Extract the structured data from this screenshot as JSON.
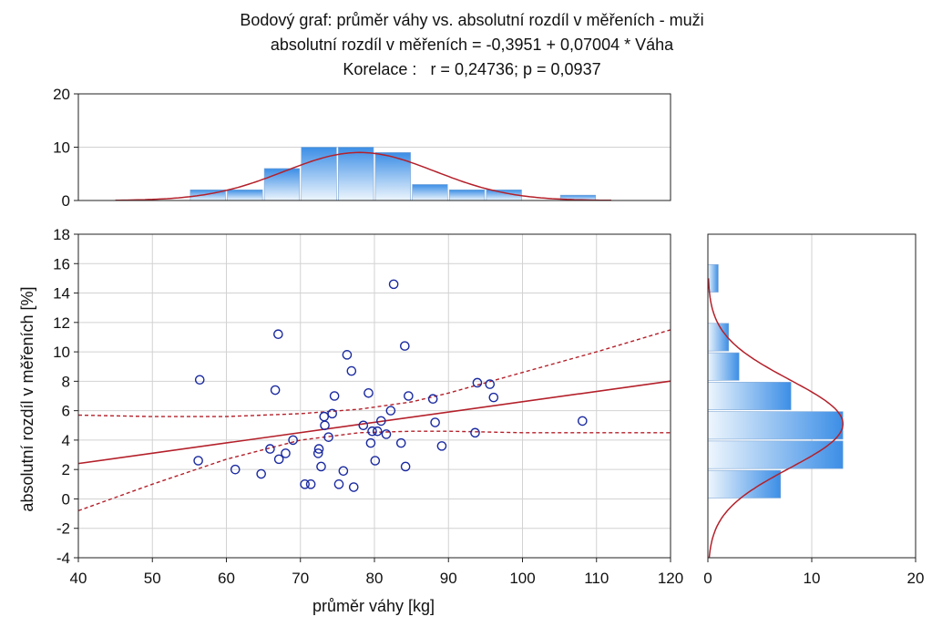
{
  "chart_data": {
    "type": "scatter",
    "title_lines": [
      "Bodový graf: průměr váhy vs. absolutní rozdíl v měřeních - muži",
      "absolutní rozdíl v měřeních = -0,3951 + 0,07004 * Váha",
      "Korelace :   r = 0,24736; p = 0,0937"
    ],
    "xlabel": "průměr váhy [kg]",
    "ylabel": "absolutní rozdíl v měřeních [%]",
    "xlim": [
      40,
      120
    ],
    "ylim": [
      -4,
      18
    ],
    "x_ticks": [
      "40",
      "50",
      "60",
      "70",
      "80",
      "90",
      "100",
      "110",
      "120"
    ],
    "y_ticks": [
      "-4",
      "-2",
      "0",
      "2",
      "4",
      "6",
      "8",
      "10",
      "12",
      "14",
      "16",
      "18"
    ],
    "grid": true,
    "regression": {
      "intercept": -0.3951,
      "slope": 0.07004
    },
    "confidence_band": {
      "x": [
        40,
        50,
        60,
        70,
        78,
        85,
        90,
        100,
        110,
        120
      ],
      "upper": [
        5.7,
        5.6,
        5.6,
        5.8,
        6.1,
        6.6,
        7.2,
        8.6,
        10.0,
        11.5
      ],
      "lower": [
        -0.8,
        1.0,
        2.7,
        4.0,
        4.5,
        4.6,
        4.6,
        4.5,
        4.5,
        4.5
      ]
    },
    "points": [
      {
        "x": 56.4,
        "y": 8.1
      },
      {
        "x": 56.2,
        "y": 2.6
      },
      {
        "x": 61.2,
        "y": 2.0
      },
      {
        "x": 64.7,
        "y": 1.7
      },
      {
        "x": 66.6,
        "y": 7.4
      },
      {
        "x": 67.0,
        "y": 11.2
      },
      {
        "x": 65.9,
        "y": 3.4
      },
      {
        "x": 67.1,
        "y": 2.7
      },
      {
        "x": 68.0,
        "y": 3.1
      },
      {
        "x": 69.0,
        "y": 4.0
      },
      {
        "x": 70.6,
        "y": 1.0
      },
      {
        "x": 71.4,
        "y": 1.0
      },
      {
        "x": 72.5,
        "y": 3.4
      },
      {
        "x": 72.4,
        "y": 3.1
      },
      {
        "x": 72.8,
        "y": 2.2
      },
      {
        "x": 73.3,
        "y": 5.0
      },
      {
        "x": 73.2,
        "y": 5.6
      },
      {
        "x": 74.3,
        "y": 5.8
      },
      {
        "x": 73.8,
        "y": 4.2
      },
      {
        "x": 74.6,
        "y": 7.0
      },
      {
        "x": 75.2,
        "y": 1.0
      },
      {
        "x": 75.8,
        "y": 1.9
      },
      {
        "x": 76.3,
        "y": 9.8
      },
      {
        "x": 76.9,
        "y": 8.7
      },
      {
        "x": 77.2,
        "y": 0.8
      },
      {
        "x": 78.5,
        "y": 5.0
      },
      {
        "x": 79.2,
        "y": 7.2
      },
      {
        "x": 79.5,
        "y": 3.8
      },
      {
        "x": 79.7,
        "y": 4.6
      },
      {
        "x": 80.1,
        "y": 2.6
      },
      {
        "x": 80.4,
        "y": 4.6
      },
      {
        "x": 80.9,
        "y": 5.3
      },
      {
        "x": 81.6,
        "y": 4.4
      },
      {
        "x": 82.2,
        "y": 6.0
      },
      {
        "x": 82.6,
        "y": 14.6
      },
      {
        "x": 83.6,
        "y": 3.8
      },
      {
        "x": 84.1,
        "y": 10.4
      },
      {
        "x": 84.2,
        "y": 2.2
      },
      {
        "x": 84.6,
        "y": 7.0
      },
      {
        "x": 87.9,
        "y": 6.8
      },
      {
        "x": 88.2,
        "y": 5.2
      },
      {
        "x": 89.1,
        "y": 3.6
      },
      {
        "x": 93.6,
        "y": 4.5
      },
      {
        "x": 93.9,
        "y": 7.9
      },
      {
        "x": 95.6,
        "y": 7.8
      },
      {
        "x": 96.1,
        "y": 6.9
      },
      {
        "x": 108.1,
        "y": 5.3
      }
    ],
    "top_histogram": {
      "ylim": [
        0,
        20
      ],
      "y_ticks": [
        "0",
        "10",
        "20"
      ],
      "bins": [
        {
          "from": 55,
          "to": 60,
          "count": 2
        },
        {
          "from": 60,
          "to": 65,
          "count": 2
        },
        {
          "from": 65,
          "to": 70,
          "count": 6
        },
        {
          "from": 70,
          "to": 75,
          "count": 10
        },
        {
          "from": 75,
          "to": 80,
          "count": 10
        },
        {
          "from": 80,
          "to": 85,
          "count": 9
        },
        {
          "from": 85,
          "to": 90,
          "count": 3
        },
        {
          "from": 90,
          "to": 95,
          "count": 2
        },
        {
          "from": 95,
          "to": 100,
          "count": 2
        },
        {
          "from": 105,
          "to": 110,
          "count": 1
        }
      ],
      "normal_fit": {
        "mean": 78,
        "sd": 10.2,
        "peak": 9
      }
    },
    "right_histogram": {
      "xlim": [
        0,
        20
      ],
      "x_ticks": [
        "0",
        "10",
        "20"
      ],
      "bins": [
        {
          "from": 0,
          "to": 2,
          "count": 7
        },
        {
          "from": 2,
          "to": 4,
          "count": 13
        },
        {
          "from": 4,
          "to": 6,
          "count": 13
        },
        {
          "from": 6,
          "to": 8,
          "count": 8
        },
        {
          "from": 8,
          "to": 10,
          "count": 3
        },
        {
          "from": 10,
          "to": 12,
          "count": 2
        },
        {
          "from": 12,
          "to": 14,
          "count": 0
        },
        {
          "from": 14,
          "to": 16,
          "count": 1
        }
      ],
      "normal_fit": {
        "mean": 5.1,
        "sd": 3.0,
        "peak": 13
      }
    },
    "colors": {
      "points": "#1a2aa0",
      "fit_line": "#b4202a",
      "bar_dark": "#3c8ee6",
      "bar_light": "#eef6fd",
      "grid": "#d2d2d2"
    }
  }
}
